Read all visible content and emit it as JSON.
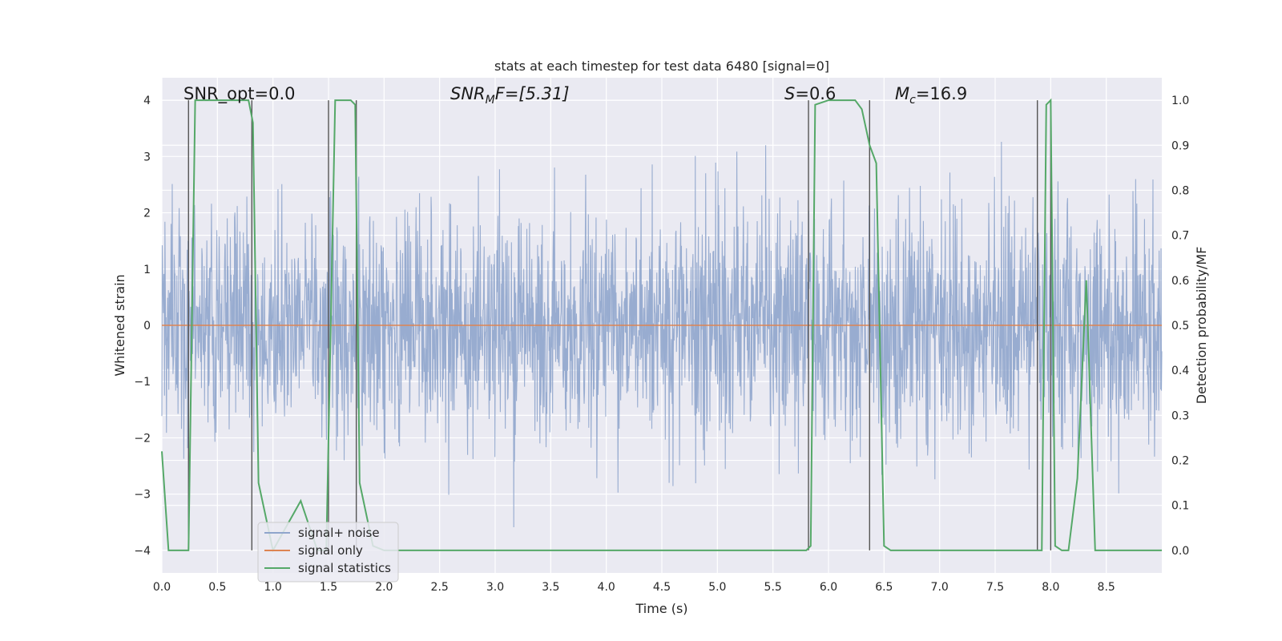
{
  "chart_data": {
    "type": "line",
    "title": "stats at each timestep for test data 6480 [signal=0]",
    "xlabel": "Time (s)",
    "ylabel": "Whitened strain",
    "y2label": "Detection probability/MF",
    "xlim": [
      0.0,
      9.0
    ],
    "ylim": [
      -4.4,
      4.4
    ],
    "y2lim": [
      -0.05,
      1.05
    ],
    "xticks": [
      "0.0",
      "0.5",
      "1.0",
      "1.5",
      "2.0",
      "2.5",
      "3.0",
      "3.5",
      "4.0",
      "4.5",
      "5.0",
      "5.5",
      "6.0",
      "6.5",
      "7.0",
      "7.5",
      "8.0",
      "8.5"
    ],
    "yticks": [
      "4",
      "3",
      "2",
      "1",
      "0",
      "−1",
      "−2",
      "−3",
      "−4"
    ],
    "y2ticks": [
      "1.0",
      "0.9",
      "0.8",
      "0.7",
      "0.6",
      "0.5",
      "0.4",
      "0.3",
      "0.2",
      "0.1",
      "0.0"
    ],
    "grid": true,
    "legend_position": "lower-left",
    "annotations": {
      "snr_opt": "SNR_opt=0.0",
      "snr_mf_base": "SNR",
      "snr_mf_sub": "M",
      "snr_mf_rest": "F=[5.31]",
      "s_var": "S",
      "s_rest": "=0.6",
      "mc_base": "M",
      "mc_sub": "c",
      "mc_rest": "=16.9"
    },
    "series": [
      {
        "name": "signal+ noise",
        "color": "#8fa5cc",
        "kind": "noise",
        "amplitude_sigma": 1.0
      },
      {
        "name": "signal only",
        "color": "#dd8452",
        "kind": "flat",
        "value": 0.0
      },
      {
        "name": "signal statistics",
        "color": "#55a868",
        "axis": "right",
        "x": [
          0.0,
          0.06,
          0.24,
          0.3,
          0.78,
          0.82,
          0.87,
          1.0,
          1.25,
          1.4,
          1.48,
          1.56,
          1.7,
          1.74,
          1.78,
          1.9,
          2.0,
          5.7,
          5.8,
          5.84,
          5.88,
          6.0,
          6.24,
          6.3,
          6.37,
          6.43,
          6.5,
          6.56,
          7.88,
          7.92,
          7.96,
          8.0,
          8.04,
          8.1,
          8.16,
          8.24,
          8.32,
          8.4,
          8.5,
          9.0
        ],
        "y": [
          0.22,
          0.0,
          0.0,
          1.0,
          1.0,
          0.95,
          0.15,
          0.0,
          0.11,
          0.0,
          0.0,
          1.0,
          1.0,
          0.99,
          0.15,
          0.01,
          0.0,
          0.0,
          0.0,
          0.01,
          0.99,
          1.0,
          1.0,
          0.98,
          0.9,
          0.86,
          0.01,
          0.0,
          0.0,
          0.0,
          0.99,
          1.0,
          0.01,
          0.0,
          0.0,
          0.16,
          0.6,
          0.0,
          0.0,
          0.0
        ]
      }
    ],
    "vertical_markers": [
      0.24,
      0.81,
      1.5,
      1.75,
      5.82,
      6.37,
      7.88,
      8.0
    ]
  }
}
